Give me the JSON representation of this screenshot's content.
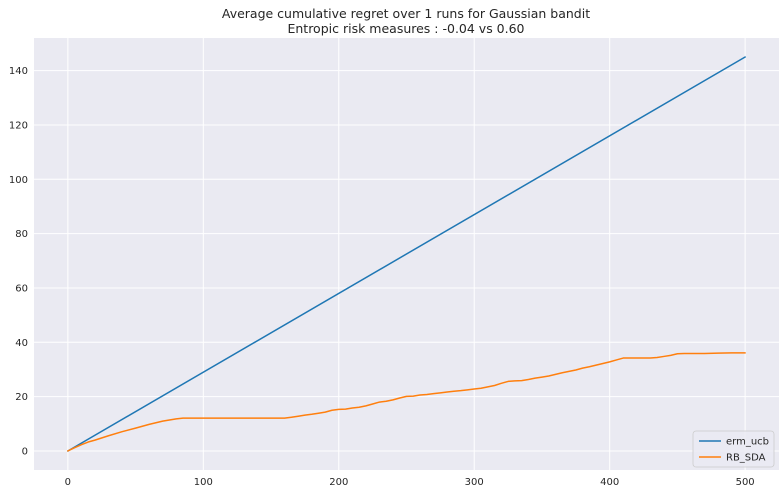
{
  "chart_data": {
    "type": "line",
    "title": "Average cumulative regret over 1 runs for Gaussian bandit",
    "subtitle": "Entropic risk measures : -0.04 vs 0.60",
    "xlabel": "",
    "ylabel": "",
    "xlim": [
      -25,
      525
    ],
    "ylim": [
      -7,
      152
    ],
    "xticks": [
      0,
      100,
      200,
      300,
      400,
      500
    ],
    "yticks": [
      0,
      20,
      40,
      60,
      80,
      100,
      120,
      140
    ],
    "grid": true,
    "legend_position": "lower right",
    "series": [
      {
        "name": "erm_ucb",
        "color": "#1f77b4",
        "x": [
          0,
          500
        ],
        "y": [
          0,
          145
        ]
      },
      {
        "name": "RB_SDA",
        "color": "#ff7f0e",
        "x": [
          0,
          5,
          10,
          15,
          20,
          30,
          40,
          50,
          60,
          70,
          80,
          85,
          90,
          100,
          120,
          140,
          160,
          165,
          170,
          175,
          180,
          185,
          190,
          195,
          200,
          205,
          210,
          215,
          220,
          225,
          230,
          235,
          240,
          245,
          250,
          255,
          260,
          265,
          270,
          275,
          280,
          285,
          290,
          295,
          300,
          305,
          310,
          315,
          320,
          325,
          330,
          335,
          340,
          345,
          350,
          355,
          360,
          365,
          370,
          375,
          380,
          385,
          390,
          395,
          400,
          405,
          410,
          415,
          420,
          425,
          430,
          435,
          440,
          445,
          450,
          455,
          460,
          470,
          480,
          490,
          500
        ],
        "y": [
          0,
          1.2,
          2.3,
          3.3,
          4.0,
          5.6,
          7.1,
          8.4,
          9.8,
          11.0,
          11.8,
          12.1,
          12.1,
          12.1,
          12.1,
          12.1,
          12.1,
          12.4,
          12.8,
          13.2,
          13.5,
          13.9,
          14.3,
          15.0,
          15.3,
          15.4,
          15.8,
          16.1,
          16.6,
          17.3,
          18.0,
          18.3,
          18.8,
          19.5,
          20.1,
          20.2,
          20.6,
          20.8,
          21.1,
          21.4,
          21.7,
          22.0,
          22.2,
          22.5,
          22.8,
          23.1,
          23.6,
          24.1,
          24.9,
          25.6,
          25.8,
          25.9,
          26.3,
          26.8,
          27.2,
          27.6,
          28.2,
          28.8,
          29.3,
          29.8,
          30.5,
          31.0,
          31.6,
          32.2,
          32.8,
          33.5,
          34.2,
          34.2,
          34.2,
          34.2,
          34.2,
          34.4,
          34.8,
          35.2,
          35.8,
          35.9,
          35.9,
          35.9,
          36.0,
          36.1,
          36.1
        ]
      }
    ]
  }
}
